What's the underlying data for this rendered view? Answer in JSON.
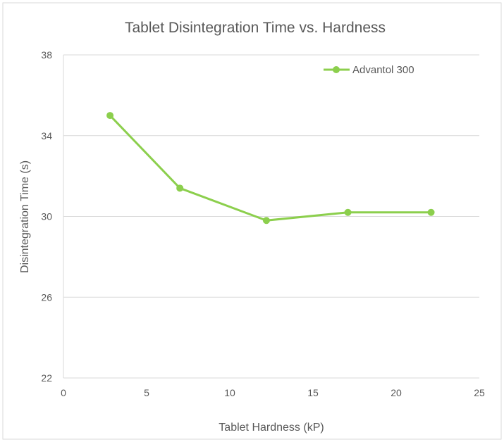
{
  "chart_data": {
    "type": "line",
    "title": "Tablet Disintegration Time vs. Hardness",
    "xlabel": "Tablet Hardness (kP)",
    "ylabel": "Disintegration Time (s)",
    "xlim": [
      0,
      25
    ],
    "ylim": [
      22,
      38
    ],
    "xticks": [
      "0",
      "5",
      "10",
      "15",
      "20",
      "25"
    ],
    "yticks": [
      "22",
      "26",
      "30",
      "34",
      "38"
    ],
    "grid": true,
    "legend_position": "top-right",
    "series": [
      {
        "name": "Advantol 300",
        "color": "#8ccf4d",
        "x": [
          2.8,
          7.0,
          12.2,
          17.1,
          22.1
        ],
        "y": [
          35.0,
          31.4,
          29.8,
          30.2,
          30.2
        ]
      }
    ]
  }
}
